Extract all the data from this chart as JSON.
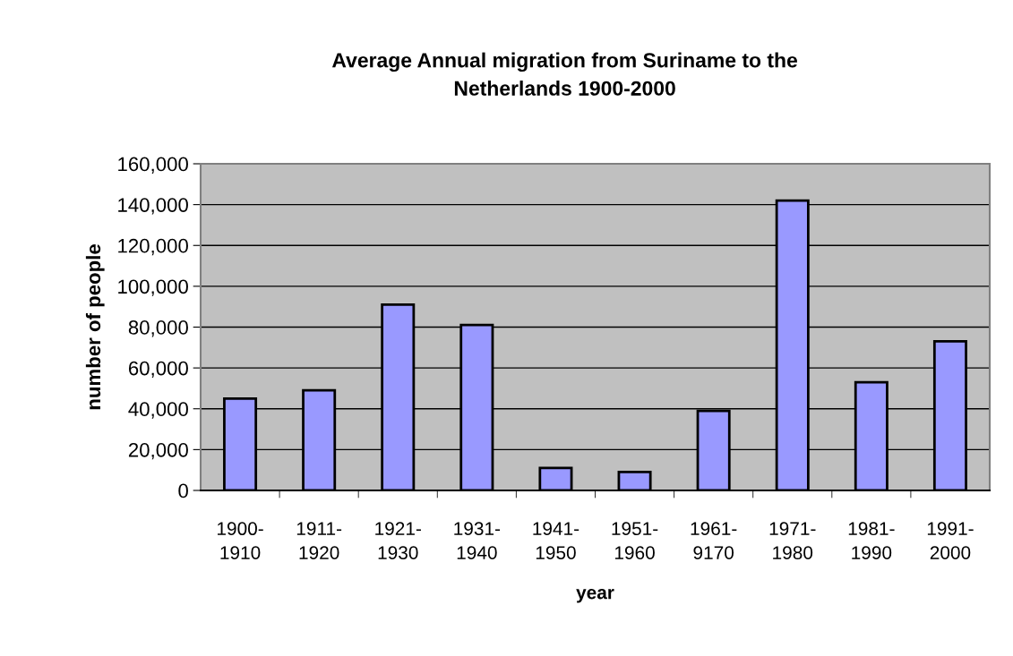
{
  "chart_data": {
    "type": "bar",
    "title": "Average Annual migration from Suriname to the\nNetherlands 1900-2000",
    "xlabel": "year",
    "ylabel": "number of people",
    "categories": [
      "1900-\n1910",
      "1911-\n1920",
      "1921-\n1930",
      "1931-\n1940",
      "1941-\n1950",
      "1951-\n1960",
      "1961-\n9170",
      "1971-\n1980",
      "1981-\n1990",
      "1991-\n2000"
    ],
    "values": [
      45000,
      49000,
      91000,
      81000,
      11000,
      9000,
      39000,
      142000,
      53000,
      73000
    ],
    "color": "#9999ff",
    "ylim": [
      0,
      160000
    ],
    "yticks": [
      {
        "value": 0,
        "label": "0"
      },
      {
        "value": 20000,
        "label": "20,000"
      },
      {
        "value": 40000,
        "label": "40,000"
      },
      {
        "value": 60000,
        "label": "60,000"
      },
      {
        "value": 80000,
        "label": "80,000"
      },
      {
        "value": 100000,
        "label": "100,000"
      },
      {
        "value": 120000,
        "label": "120,000"
      },
      {
        "value": 140000,
        "label": "140,000"
      },
      {
        "value": 160000,
        "label": "160,000"
      }
    ],
    "grid": "y"
  }
}
